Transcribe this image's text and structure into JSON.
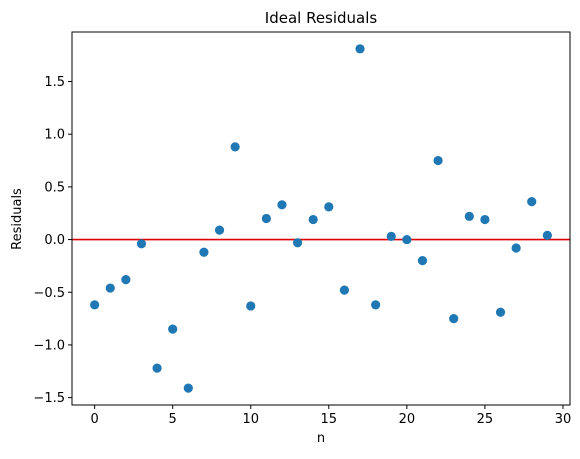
{
  "chart_data": {
    "type": "scatter",
    "title": "Ideal Residuals",
    "xlabel": "n",
    "ylabel": "Residuals",
    "xlim": [
      -1.45,
      30.45
    ],
    "ylim": [
      -1.57,
      1.97
    ],
    "xticks": [
      0,
      5,
      10,
      15,
      20,
      25,
      30
    ],
    "yticks": [
      -1.5,
      -1.0,
      -0.5,
      0.0,
      0.5,
      1.0,
      1.5
    ],
    "ytick_labels": [
      "−1.5",
      "−1.0",
      "−0.5",
      "0.0",
      "0.5",
      "1.0",
      "1.5"
    ],
    "grid": false,
    "reference_line": {
      "y": 0.0,
      "color": "#e00000"
    },
    "point_color": "#1f77b4",
    "series": [
      {
        "x": [
          0,
          1,
          2,
          3,
          4,
          5,
          6,
          7,
          8,
          9,
          10,
          11,
          12,
          13,
          14,
          15,
          16,
          17,
          18,
          19,
          20,
          21,
          22,
          23,
          24,
          25,
          26,
          27,
          28,
          29
        ],
        "values": [
          -0.62,
          -0.46,
          -0.38,
          -0.04,
          -1.22,
          -0.85,
          -1.41,
          -0.12,
          0.09,
          0.88,
          -0.63,
          0.2,
          0.33,
          -0.03,
          0.19,
          0.31,
          -0.48,
          1.81,
          -0.62,
          0.03,
          0.0,
          -0.2,
          0.75,
          -0.75,
          0.22,
          0.19,
          -0.69,
          -0.08,
          0.36,
          0.04
        ]
      }
    ]
  }
}
